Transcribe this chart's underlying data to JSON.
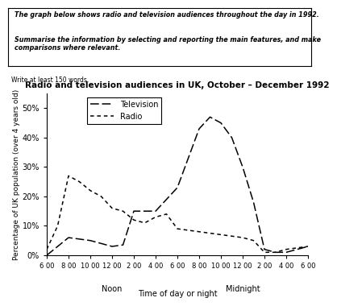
{
  "title": "Radio and television audiences in UK, October – December 1992",
  "xlabel": "Time of day or night",
  "ylabel": "Percentage of UK population (over 4 years old)",
  "prompt_line1": "The graph below shows radio and television audiences throughout the day in 1992.",
  "prompt_line2": "Summarise the information by selecting and reporting the main features, and make\ncomparisons where relevant.",
  "write_note": "Write at least 150 words.",
  "x_tick_labels": [
    "6 00",
    "8 00",
    "10 00",
    "12 00",
    "2 00",
    "4 00",
    "6 00",
    "8 00",
    "10 00",
    "12 00",
    "2 00",
    "4 00",
    "6 00"
  ],
  "ytick_labels": [
    "0%",
    "10%",
    "20%",
    "30%",
    "40%",
    "50%"
  ],
  "ylim": [
    0,
    55
  ],
  "tv_x": [
    0,
    0.5,
    1,
    2,
    3,
    3.5,
    4,
    4.5,
    5,
    6,
    7,
    7.5,
    8,
    8.5,
    9,
    9.5,
    10,
    10.5,
    11,
    11.5,
    12
  ],
  "tv_y": [
    0,
    3,
    6,
    5,
    3,
    3.5,
    15,
    15,
    15,
    23,
    43,
    47,
    45,
    40,
    30,
    18,
    2,
    1,
    1,
    2,
    3
  ],
  "radio_x": [
    0,
    0.5,
    1,
    1.5,
    2,
    2.5,
    3,
    3.5,
    4,
    4.5,
    5,
    5.5,
    6,
    7,
    8,
    9,
    9.5,
    10,
    10.5,
    11,
    11.5,
    12
  ],
  "radio_y": [
    2,
    10,
    27,
    25,
    22,
    20,
    16,
    15,
    12,
    11,
    13,
    14,
    9,
    8,
    7,
    6,
    5,
    1,
    1,
    2,
    2.5,
    3
  ],
  "line_color": "#000000"
}
